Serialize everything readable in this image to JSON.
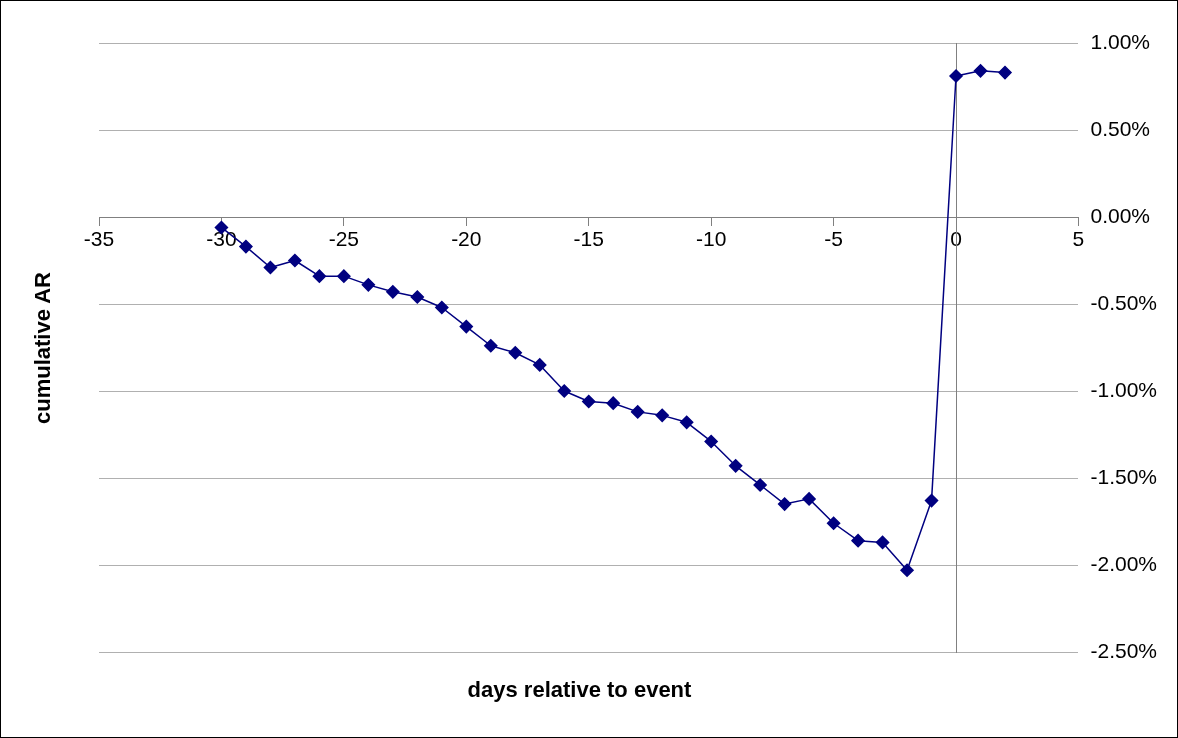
{
  "chart_data": {
    "type": "line",
    "xlabel": "days relative to event",
    "ylabel": "cumulative AR",
    "x": [
      -30,
      -29,
      -28,
      -27,
      -26,
      -25,
      -24,
      -23,
      -22,
      -21,
      -20,
      -19,
      -18,
      -17,
      -16,
      -15,
      -14,
      -13,
      -12,
      -11,
      -10,
      -9,
      -8,
      -7,
      -6,
      -5,
      -4,
      -3,
      -2,
      -1,
      0,
      1,
      2
    ],
    "series": [
      {
        "color": "#000080",
        "values": [
          -0.06,
          -0.17,
          -0.29,
          -0.25,
          -0.34,
          -0.34,
          -0.39,
          -0.43,
          -0.46,
          -0.52,
          -0.63,
          -0.74,
          -0.78,
          -0.85,
          -1.0,
          -1.06,
          -1.07,
          -1.12,
          -1.14,
          -1.18,
          -1.29,
          -1.43,
          -1.54,
          -1.65,
          -1.62,
          -1.76,
          -1.86,
          -1.87,
          -2.03,
          -1.63,
          0.81,
          0.84,
          0.83
        ]
      }
    ],
    "xlim": [
      -35,
      5
    ],
    "xticks": [
      -35,
      -30,
      -25,
      -20,
      -15,
      -10,
      -5,
      0,
      5
    ],
    "ylim": [
      -2.5,
      1
    ],
    "yticks": [
      {
        "value": -2.5,
        "label": "-2.50%"
      },
      {
        "value": -2,
        "label": "-2.00%"
      },
      {
        "value": -1.5,
        "label": "-1.50%"
      },
      {
        "value": -1,
        "label": "-1.00%"
      },
      {
        "value": -0.5,
        "label": "-0.50%"
      },
      {
        "value": 0,
        "label": "0.00%"
      },
      {
        "value": 0.5,
        "label": "0.50%"
      },
      {
        "value": 1,
        "label": "1.00%"
      }
    ],
    "grid": "y",
    "legend": false,
    "marker": "diamond",
    "line_style": "solid"
  }
}
